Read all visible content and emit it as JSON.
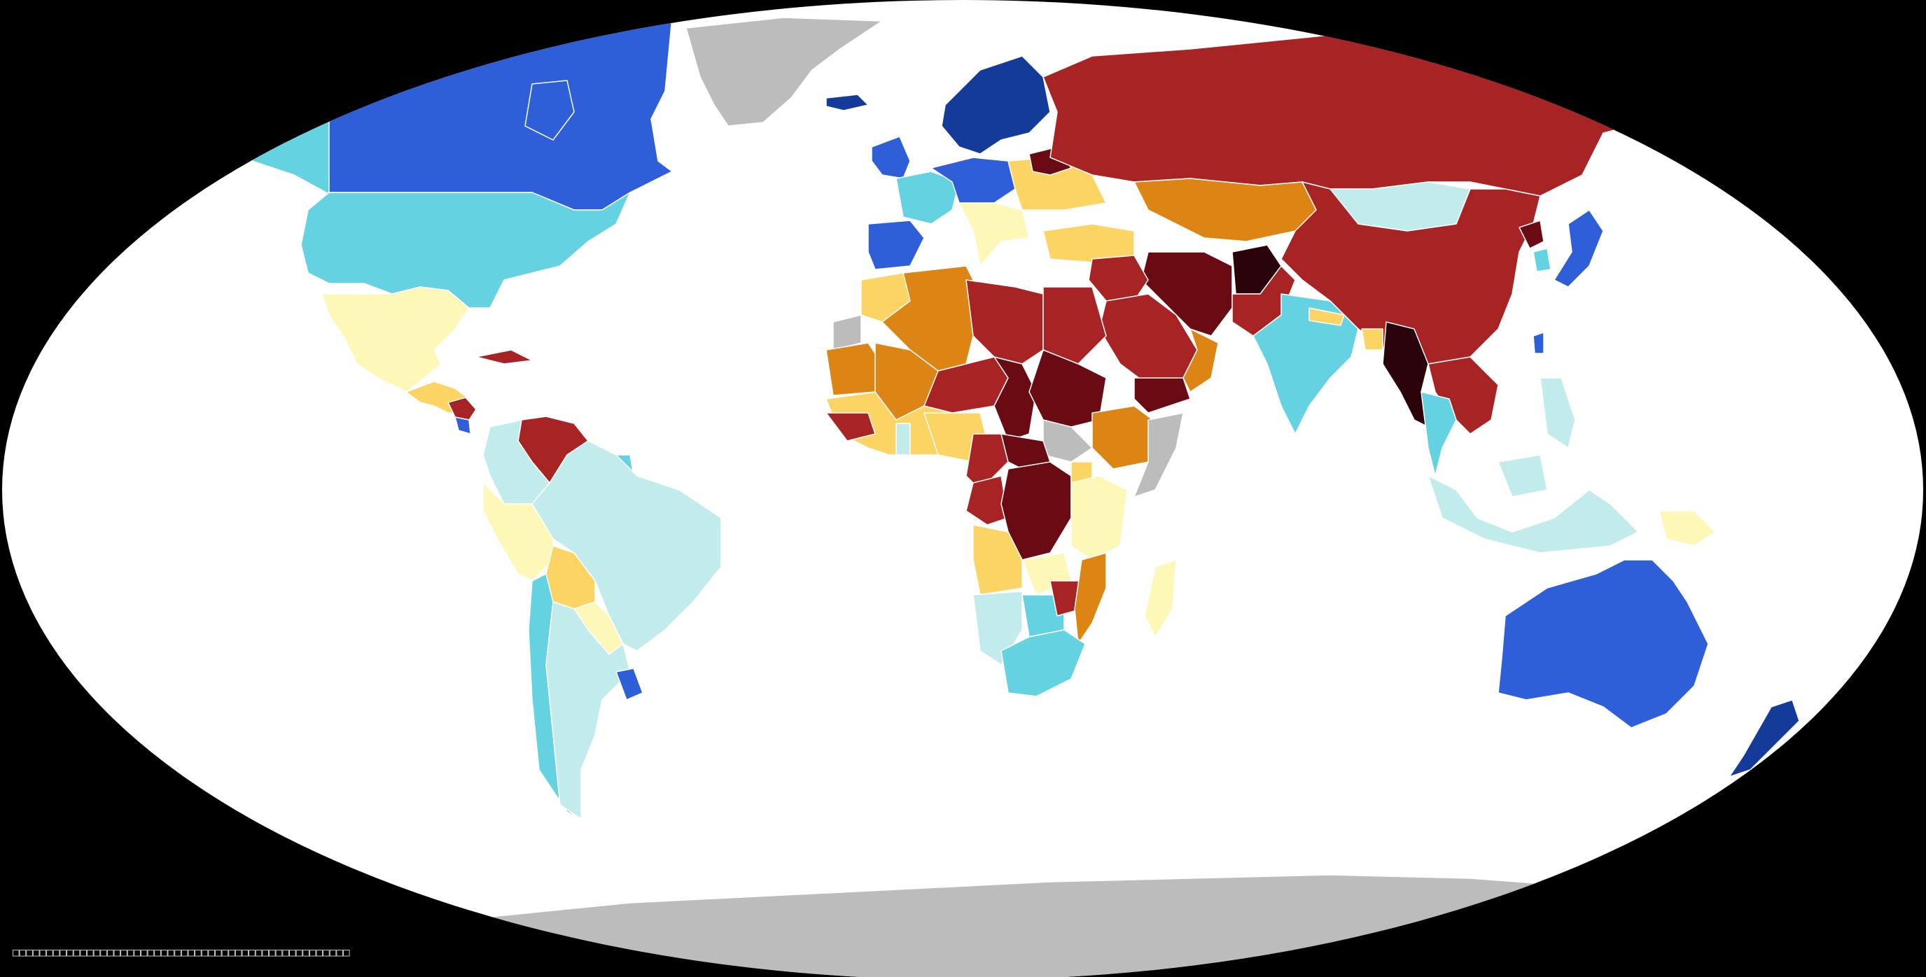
{
  "map": {
    "projection": "robinson",
    "ocean_color": "#ffffff",
    "background_color": "#000000",
    "caption": "□□□□□□□□□□□□□□□□□□□□□□□□□□□□□□□□□□□□□□□□□□□□□□□□□□",
    "caption_color": "#d8d8d8",
    "legend_palette": [
      {
        "key": "c1",
        "color": "#143a9a"
      },
      {
        "key": "c2",
        "color": "#2f5fd8"
      },
      {
        "key": "c3",
        "color": "#64d2e0"
      },
      {
        "key": "c4",
        "color": "#c2ecec"
      },
      {
        "key": "c5",
        "color": "#fdf8b8"
      },
      {
        "key": "c6",
        "color": "#fbd463"
      },
      {
        "key": "c7",
        "color": "#dc8414"
      },
      {
        "key": "c8",
        "color": "#a82424"
      },
      {
        "key": "c9",
        "color": "#6a0a12"
      },
      {
        "key": "c10",
        "color": "#2a040a"
      },
      {
        "key": "nodata",
        "color": "#bcbcbc"
      }
    ],
    "regions": [
      {
        "name": "Canada",
        "color": "#2f5fd8"
      },
      {
        "name": "Alaska",
        "color": "#64d2e0"
      },
      {
        "name": "Greenland",
        "color": "#bcbcbc"
      },
      {
        "name": "Iceland",
        "color": "#143a9a"
      },
      {
        "name": "United States",
        "color": "#64d2e0"
      },
      {
        "name": "Mexico",
        "color": "#fdf8b8"
      },
      {
        "name": "Central America",
        "color": "#fbd463"
      },
      {
        "name": "Nicaragua",
        "color": "#a82424"
      },
      {
        "name": "Costa Rica",
        "color": "#2f5fd8"
      },
      {
        "name": "Cuba",
        "color": "#a82424"
      },
      {
        "name": "Venezuela",
        "color": "#a82424"
      },
      {
        "name": "Colombia",
        "color": "#c2ecec"
      },
      {
        "name": "Brazil",
        "color": "#c2ecec"
      },
      {
        "name": "Peru",
        "color": "#fdf8b8"
      },
      {
        "name": "Bolivia",
        "color": "#fbd463"
      },
      {
        "name": "Paraguay",
        "color": "#fdf8b8"
      },
      {
        "name": "Chile",
        "color": "#64d2e0"
      },
      {
        "name": "Argentina",
        "color": "#c2ecec"
      },
      {
        "name": "Uruguay",
        "color": "#2f5fd8"
      },
      {
        "name": "Suriname",
        "color": "#64d2e0"
      },
      {
        "name": "Nordics",
        "color": "#143a9a"
      },
      {
        "name": "Ireland & UK",
        "color": "#2f5fd8"
      },
      {
        "name": "Western Europe",
        "color": "#64d2e0"
      },
      {
        "name": "Central Europe",
        "color": "#2f5fd8"
      },
      {
        "name": "Iberia",
        "color": "#2f5fd8"
      },
      {
        "name": "Italy & Balkans",
        "color": "#fdf8b8"
      },
      {
        "name": "Ukraine & Poland",
        "color": "#fbd463"
      },
      {
        "name": "Belarus",
        "color": "#6a0a12"
      },
      {
        "name": "Turkey",
        "color": "#fbd463"
      },
      {
        "name": "Russia",
        "color": "#a82424"
      },
      {
        "name": "Kazakhstan",
        "color": "#dc8414"
      },
      {
        "name": "Mongolia",
        "color": "#c2ecec"
      },
      {
        "name": "China",
        "color": "#a82424"
      },
      {
        "name": "North Korea",
        "color": "#6a0a12"
      },
      {
        "name": "South Korea",
        "color": "#64d2e0"
      },
      {
        "name": "Japan",
        "color": "#2f5fd8"
      },
      {
        "name": "Taiwan",
        "color": "#2f5fd8"
      },
      {
        "name": "Iran",
        "color": "#6a0a12"
      },
      {
        "name": "Afghanistan",
        "color": "#2a040a"
      },
      {
        "name": "Pakistan",
        "color": "#a82424"
      },
      {
        "name": "India",
        "color": "#64d2e0"
      },
      {
        "name": "Nepal",
        "color": "#fbd463"
      },
      {
        "name": "Bangladesh",
        "color": "#fbd463"
      },
      {
        "name": "Myanmar",
        "color": "#2a040a"
      },
      {
        "name": "Indochina",
        "color": "#a82424"
      },
      {
        "name": "Thailand",
        "color": "#64d2e0"
      },
      {
        "name": "Malaysia & Indonesia",
        "color": "#c2ecec"
      },
      {
        "name": "Philippines",
        "color": "#c2ecec"
      },
      {
        "name": "Papua New Guinea",
        "color": "#fdf8b8"
      },
      {
        "name": "Saudi Arabia",
        "color": "#a82424"
      },
      {
        "name": "Iraq & Syria",
        "color": "#a82424"
      },
      {
        "name": "Yemen",
        "color": "#6a0a12"
      },
      {
        "name": "Oman",
        "color": "#dc8414"
      },
      {
        "name": "Algeria",
        "color": "#dc8414"
      },
      {
        "name": "Morocco",
        "color": "#fbd463"
      },
      {
        "name": "Western Sahara",
        "color": "#bcbcbc"
      },
      {
        "name": "Libya",
        "color": "#a82424"
      },
      {
        "name": "Egypt",
        "color": "#a82424"
      },
      {
        "name": "Mali",
        "color": "#dc8414"
      },
      {
        "name": "Mauritania",
        "color": "#dc8414"
      },
      {
        "name": "Niger",
        "color": "#a82424"
      },
      {
        "name": "Chad",
        "color": "#6a0a12"
      },
      {
        "name": "Sudan",
        "color": "#6a0a12"
      },
      {
        "name": "Ethiopia",
        "color": "#dc8414"
      },
      {
        "name": "Somalia",
        "color": "#bcbcbc"
      },
      {
        "name": "South Sudan",
        "color": "#bcbcbc"
      },
      {
        "name": "Nigeria",
        "color": "#fbd463"
      },
      {
        "name": "Ghana",
        "color": "#c2ecec"
      },
      {
        "name": "West Africa coast",
        "color": "#fbd463"
      },
      {
        "name": "Guinea region",
        "color": "#a82424"
      },
      {
        "name": "Cameroon",
        "color": "#a82424"
      },
      {
        "name": "Central African Republic",
        "color": "#6a0a12"
      },
      {
        "name": "DR Congo",
        "color": "#6a0a12"
      },
      {
        "name": "Congo & Gabon",
        "color": "#a82424"
      },
      {
        "name": "Kenya & Tanzania",
        "color": "#fdf8b8"
      },
      {
        "name": "Uganda",
        "color": "#fbd463"
      },
      {
        "name": "Angola",
        "color": "#fbd463"
      },
      {
        "name": "Zambia",
        "color": "#fdf8b8"
      },
      {
        "name": "Namibia",
        "color": "#c2ecec"
      },
      {
        "name": "Botswana",
        "color": "#64d2e0"
      },
      {
        "name": "Zimbabwe",
        "color": "#a82424"
      },
      {
        "name": "Mozambique",
        "color": "#dc8414"
      },
      {
        "name": "South Africa",
        "color": "#64d2e0"
      },
      {
        "name": "Madagascar",
        "color": "#fdf8b8"
      },
      {
        "name": "Australia",
        "color": "#2f5fd8"
      },
      {
        "name": "New Zealand",
        "color": "#143a9a"
      },
      {
        "name": "Antarctica",
        "color": "#bcbcbc"
      }
    ]
  }
}
